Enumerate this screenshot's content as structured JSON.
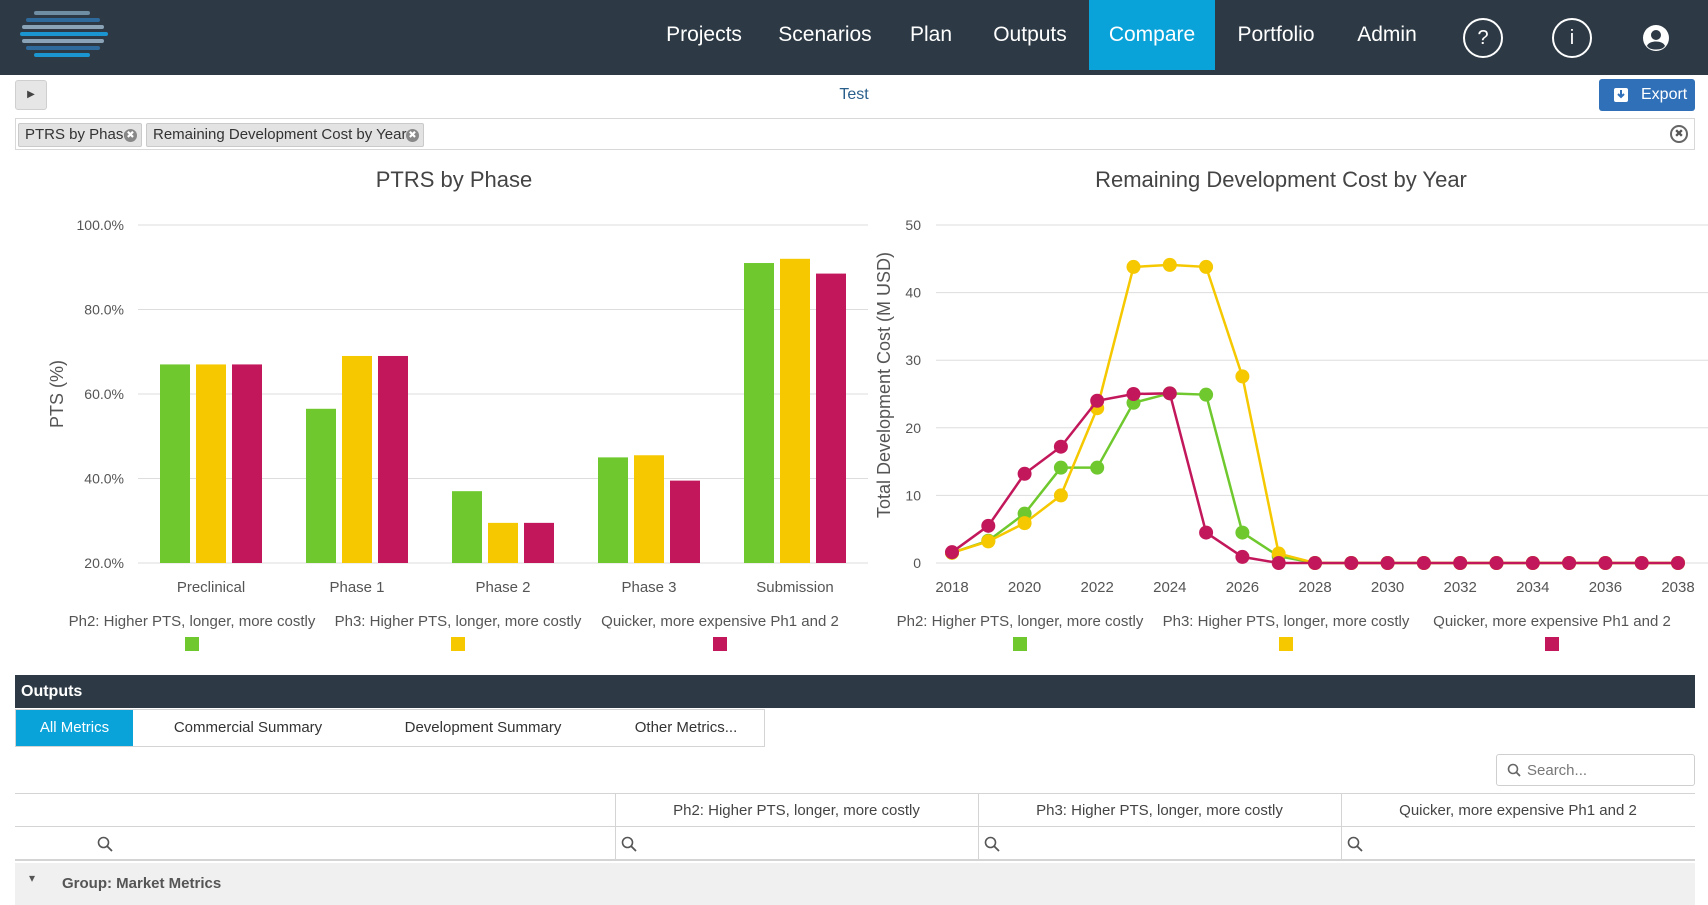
{
  "nav": {
    "items": [
      "Projects",
      "Scenarios",
      "Plan",
      "Outputs",
      "Compare",
      "Portfolio",
      "Admin"
    ],
    "active": "Compare",
    "help_label": "?",
    "info_label": "i"
  },
  "toolbar": {
    "title": "Test",
    "export_label": "Export"
  },
  "tags": [
    "PTRS by Phase",
    "Remaining Development Cost by Year"
  ],
  "colors": {
    "green": "#6fc92e",
    "yellow": "#f5c800",
    "crimson": "#c2185b",
    "nav_bg": "#2d3a45",
    "accent": "#0aa3d9",
    "export": "#2f70b8"
  },
  "chart_data": [
    {
      "type": "bar",
      "title": "PTRS by Phase",
      "ylabel": "PTS (%)",
      "xlabel": "",
      "ylim": [
        20,
        100
      ],
      "yticks": [
        "20.0%",
        "40.0%",
        "60.0%",
        "80.0%",
        "100.0%"
      ],
      "categories": [
        "Preclinical",
        "Phase 1",
        "Phase 2",
        "Phase 3",
        "Submission"
      ],
      "series": [
        {
          "name": "Ph2: Higher PTS, longer, more costly",
          "color": "#6fc92e",
          "values": [
            67,
            56.5,
            37,
            45,
            91
          ]
        },
        {
          "name": "Ph3: Higher PTS, longer, more costly",
          "color": "#f5c800",
          "values": [
            67,
            69,
            29.5,
            45.5,
            92
          ]
        },
        {
          "name": "Quicker, more expensive Ph1 and 2",
          "color": "#c2185b",
          "values": [
            67,
            69,
            29.5,
            39.5,
            88.5
          ]
        }
      ],
      "grid": true,
      "legend": "bottom"
    },
    {
      "type": "line",
      "title": "Remaining Development Cost by Year",
      "ylabel": "Total Development Cost (M USD)",
      "xlabel": "",
      "ylim": [
        0,
        50
      ],
      "yticks": [
        "0",
        "10",
        "20",
        "30",
        "40",
        "50"
      ],
      "xticks": [
        "2018",
        "2020",
        "2022",
        "2024",
        "2026",
        "2028",
        "2030",
        "2032",
        "2034",
        "2036",
        "2038"
      ],
      "x": [
        2018,
        2019,
        2020,
        2021,
        2022,
        2023,
        2024,
        2025,
        2026,
        2027,
        2028,
        2029,
        2030,
        2031,
        2032,
        2033,
        2034,
        2035,
        2036,
        2037,
        2038
      ],
      "series": [
        {
          "name": "Ph2: Higher PTS, longer, more costly",
          "color": "#6fc92e",
          "values": [
            1.5,
            3.3,
            7.3,
            14.1,
            14.1,
            23.7,
            25.1,
            24.9,
            4.5,
            1.0,
            0,
            0,
            0,
            0,
            0,
            0,
            0,
            0,
            0,
            0,
            0
          ]
        },
        {
          "name": "Ph3: Higher PTS, longer, more costly",
          "color": "#f5c800",
          "values": [
            1.5,
            3.2,
            5.9,
            10.0,
            22.9,
            43.8,
            44.1,
            43.8,
            27.6,
            1.4,
            0,
            0,
            0,
            0,
            0,
            0,
            0,
            0,
            0,
            0,
            0
          ]
        },
        {
          "name": "Quicker, more expensive Ph1 and 2",
          "color": "#c2185b",
          "values": [
            1.6,
            5.5,
            13.2,
            17.2,
            24.0,
            25.0,
            25.1,
            4.5,
            0.9,
            0,
            0,
            0,
            0,
            0,
            0,
            0,
            0,
            0,
            0,
            0,
            0
          ]
        }
      ],
      "grid": true,
      "legend": "bottom"
    }
  ],
  "outputs": {
    "header": "Outputs",
    "tabs": [
      "All Metrics",
      "Commercial Summary",
      "Development Summary",
      "Other Metrics..."
    ],
    "active_tab": "All Metrics",
    "search_placeholder": "Search...",
    "columns": [
      "",
      "Ph2: Higher PTS, longer, more costly",
      "Ph3: Higher PTS, longer, more costly",
      "Quicker, more expensive Ph1 and 2"
    ],
    "group_label": "Group: Market Metrics"
  }
}
